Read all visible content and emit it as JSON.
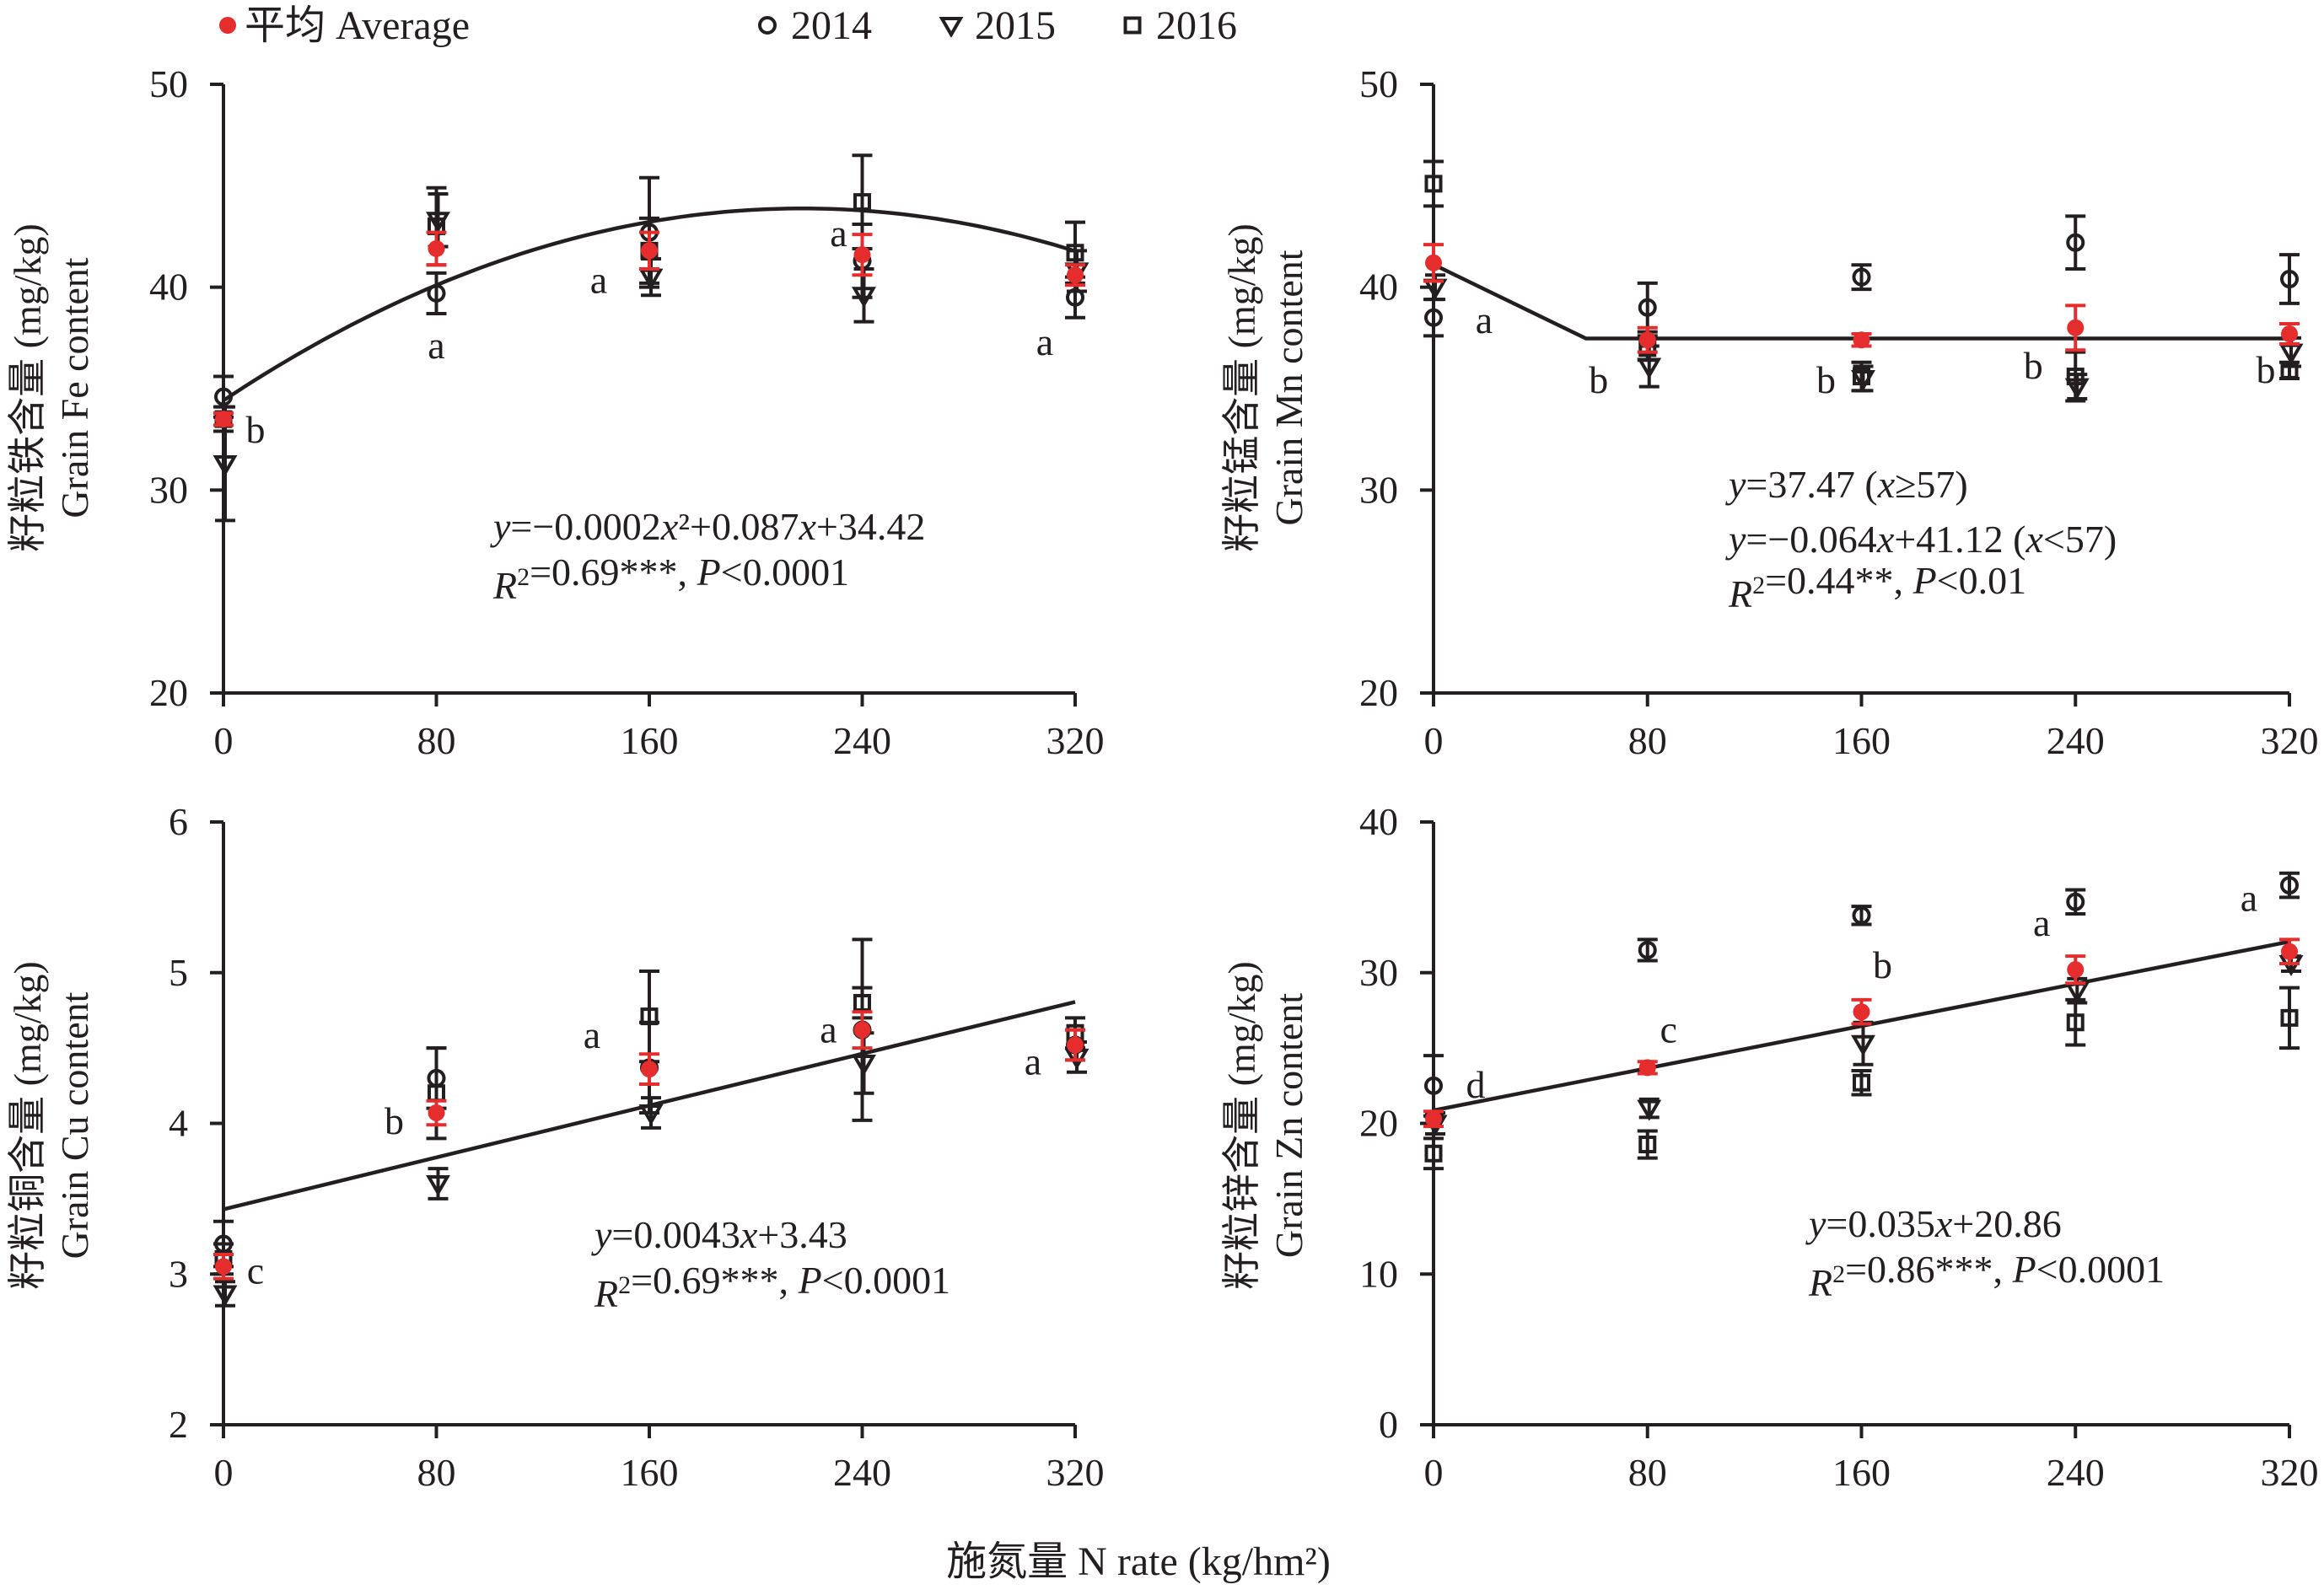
{
  "legend": [
    {
      "label": "平均 Average",
      "marker": "dot",
      "color": "#e52d2d"
    },
    {
      "label": "2014",
      "marker": "circle",
      "color": "#231f20"
    },
    {
      "label": "2015",
      "marker": "triangle-down",
      "color": "#231f20"
    },
    {
      "label": "2016",
      "marker": "square",
      "color": "#231f20"
    }
  ],
  "x_title": "施氮量 N rate (kg/hm²)",
  "colors": {
    "average": "#e52d2d",
    "year": "#231f20"
  },
  "chart_data": [
    {
      "id": "fe",
      "type": "scatter",
      "ylabel_cn": "籽粒铁含量 (mg/kg)",
      "ylabel_en": "Grain Fe content",
      "x_ticks": [
        0,
        80,
        160,
        240,
        320
      ],
      "xlim": [
        0,
        320
      ],
      "y_ticks": [
        20,
        30,
        40,
        50
      ],
      "ylim": [
        20,
        50
      ],
      "fit": {
        "kind": "quadratic",
        "coeffs": [
          -0.0002,
          0.087,
          34.42
        ]
      },
      "equation": [
        "y=−0.0002x²+0.087x+34.42",
        "R²=0.69***, P<0.0001"
      ],
      "x": [
        0,
        80,
        160,
        240,
        320
      ],
      "series": [
        {
          "name": "平均 Average",
          "values": [
            33.5,
            41.9,
            41.8,
            41.6,
            40.6
          ],
          "err": [
            0.3,
            0.8,
            0.9,
            1.0,
            0.5
          ]
        },
        {
          "name": "2014",
          "values": [
            34.6,
            39.7,
            42.7,
            41.3,
            39.5
          ],
          "err": [
            1.0,
            1.0,
            2.7,
            1.8,
            1.0
          ]
        },
        {
          "name": "2015",
          "values": [
            31.3,
            43.3,
            40.5,
            39.6,
            40.8
          ],
          "err": [
            2.8,
            1.3,
            0.9,
            1.3,
            1.0
          ]
        },
        {
          "name": "2016",
          "values": [
            33.5,
            43.0,
            41.8,
            44.2,
            41.7
          ],
          "err": [
            0.6,
            1.9,
            1.6,
            2.3,
            1.5
          ]
        }
      ],
      "letters": [
        "b",
        "a",
        "a",
        "a",
        "a"
      ]
    },
    {
      "id": "mn",
      "type": "scatter",
      "ylabel_cn": "籽粒锰含量 (mg/kg)",
      "ylabel_en": "Grain Mn content",
      "x_ticks": [
        0,
        80,
        160,
        240,
        320
      ],
      "xlim": [
        0,
        320
      ],
      "y_ticks": [
        20,
        30,
        40,
        50
      ],
      "ylim": [
        20,
        50
      ],
      "fit": {
        "kind": "plateau",
        "slope": -0.064,
        "intercept": 41.12,
        "breakpoint": 57,
        "plateau": 37.47
      },
      "equation": [
        "y=37.47 (x≥57)",
        "y=−0.064x+41.12 (x<57)",
        "R²=0.44**, P<0.01"
      ],
      "x": [
        0,
        80,
        160,
        240,
        320
      ],
      "series": [
        {
          "name": "平均 Average",
          "values": [
            41.2,
            37.4,
            37.4,
            38.0,
            37.7
          ],
          "err": [
            0.9,
            0.6,
            0.3,
            1.1,
            0.5
          ]
        },
        {
          "name": "2014",
          "values": [
            38.5,
            39.0,
            40.5,
            42.2,
            40.4
          ],
          "err": [
            0.9,
            1.2,
            0.6,
            1.3,
            1.2
          ]
        },
        {
          "name": "2015",
          "values": [
            40.0,
            36.1,
            35.5,
            35.1,
            36.8
          ],
          "err": [
            0.6,
            1.0,
            0.6,
            0.6,
            0.7
          ]
        },
        {
          "name": "2016",
          "values": [
            45.1,
            37.0,
            35.6,
            35.6,
            35.9
          ],
          "err": [
            1.1,
            0.6,
            0.7,
            1.2,
            0.4
          ]
        }
      ],
      "letters": [
        "a",
        "b",
        "b",
        "b",
        "b"
      ]
    },
    {
      "id": "cu",
      "type": "scatter",
      "ylabel_cn": "籽粒铜含量 (mg/kg)",
      "ylabel_en": "Grain Cu content",
      "x_ticks": [
        0,
        80,
        160,
        240,
        320
      ],
      "xlim": [
        0,
        320
      ],
      "y_ticks": [
        2,
        3,
        4,
        5,
        6
      ],
      "ylim": [
        2,
        6
      ],
      "fit": {
        "kind": "linear",
        "slope": 0.0043,
        "intercept": 3.43
      },
      "equation": [
        "y=0.0043x+3.43",
        "R²=0.69***, P<0.0001"
      ],
      "x": [
        0,
        80,
        160,
        240,
        320
      ],
      "series": [
        {
          "name": "平均 Average",
          "values": [
            3.05,
            4.07,
            4.36,
            4.62,
            4.52
          ],
          "err": [
            0.08,
            0.08,
            0.1,
            0.12,
            0.1
          ]
        },
        {
          "name": "2014",
          "values": [
            3.2,
            4.3,
            4.37,
            4.62,
            4.52
          ],
          "err": [
            0.15,
            0.2,
            0.3,
            0.6,
            0.1
          ]
        },
        {
          "name": "2015",
          "values": [
            2.87,
            3.6,
            4.07,
            4.4,
            4.44
          ],
          "err": [
            0.08,
            0.1,
            0.1,
            0.2,
            0.1
          ]
        },
        {
          "name": "2016",
          "values": [
            3.1,
            4.2,
            4.71,
            4.8,
            4.6
          ],
          "err": [
            0.1,
            0.3,
            0.3,
            0.1,
            0.1
          ]
        }
      ],
      "letters": [
        "c",
        "b",
        "a",
        "a",
        "a"
      ]
    },
    {
      "id": "zn",
      "type": "scatter",
      "ylabel_cn": "籽粒锌含量 (mg/kg)",
      "ylabel_en": "Grain Zn content",
      "x_ticks": [
        0,
        80,
        160,
        240,
        320
      ],
      "xlim": [
        0,
        320
      ],
      "y_ticks": [
        0,
        10,
        20,
        30,
        40
      ],
      "ylim": [
        0,
        40
      ],
      "fit": {
        "kind": "linear",
        "slope": 0.035,
        "intercept": 20.86
      },
      "equation": [
        "y=0.035x+20.86",
        "R²=0.86***, P<0.0001"
      ],
      "x": [
        0,
        80,
        160,
        240,
        320
      ],
      "series": [
        {
          "name": "平均 Average",
          "values": [
            20.3,
            23.7,
            27.4,
            30.2,
            31.4
          ],
          "err": [
            0.5,
            0.4,
            0.8,
            0.9,
            0.8
          ]
        },
        {
          "name": "2014",
          "values": [
            22.5,
            31.5,
            33.8,
            34.7,
            35.8
          ],
          "err": [
            2.0,
            0.7,
            0.6,
            0.8,
            0.8
          ]
        },
        {
          "name": "2015",
          "values": [
            20.0,
            21.0,
            25.3,
            28.8,
            30.6
          ],
          "err": [
            0.7,
            0.6,
            1.4,
            0.8,
            0.5
          ]
        },
        {
          "name": "2016",
          "values": [
            18.0,
            18.6,
            22.7,
            26.7,
            27.0
          ],
          "err": [
            1.0,
            0.9,
            0.8,
            1.5,
            2.0
          ]
        }
      ],
      "letters": [
        "d",
        "c",
        "b",
        "a",
        "a"
      ]
    }
  ]
}
